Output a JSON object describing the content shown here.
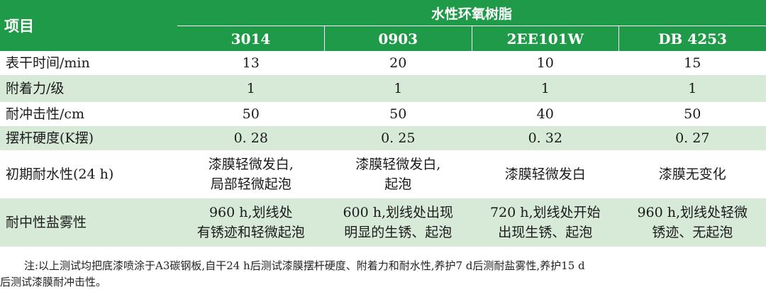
{
  "table": {
    "item_header": "项目",
    "group_header": "水性环氧树脂",
    "columns": [
      "3014",
      "0903",
      "2EE101W",
      "DB 4253"
    ],
    "rows": [
      {
        "label": "表干时间/min",
        "values": [
          "13",
          "20",
          "10",
          "15"
        ]
      },
      {
        "label": "附着力/级",
        "values": [
          "1",
          "1",
          "1",
          "1"
        ]
      },
      {
        "label": "耐冲击性/cm",
        "values": [
          "50",
          "50",
          "40",
          "50"
        ]
      },
      {
        "label": "摆杆硬度(K摆)",
        "values": [
          "0. 28",
          "0. 25",
          "0. 32",
          "0. 27"
        ]
      },
      {
        "label": "初期耐水性(24 h)",
        "values": [
          [
            "漆膜轻微发白,",
            "局部轻微起泡"
          ],
          [
            "漆膜轻微发白,",
            "起泡"
          ],
          [
            "漆膜轻微发白"
          ],
          [
            "漆膜无变化"
          ]
        ]
      },
      {
        "label": "耐中性盐雾性",
        "values": [
          [
            "960 h,划线处",
            "有锈迹和轻微起泡"
          ],
          [
            "600 h,划线处出现",
            "明显的生锈、起泡"
          ],
          [
            "720 h,划线处开始",
            "出现生锈、起泡"
          ],
          [
            "960 h,划线处轻微",
            "锈迹、无起泡"
          ]
        ]
      }
    ]
  },
  "note": {
    "line1": "注:以上测试均把底漆喷涂于A3碳钢板,自干24 h后测试漆膜摆杆硬度、附着力和耐水性,养护7 d后测耐盐雾性,养护15 d",
    "line2": "后测试漆膜耐冲击性。"
  },
  "colors": {
    "header_bg": "#1f9a48",
    "shade_row": "#d7ead8",
    "header_text": "#ffffff"
  }
}
